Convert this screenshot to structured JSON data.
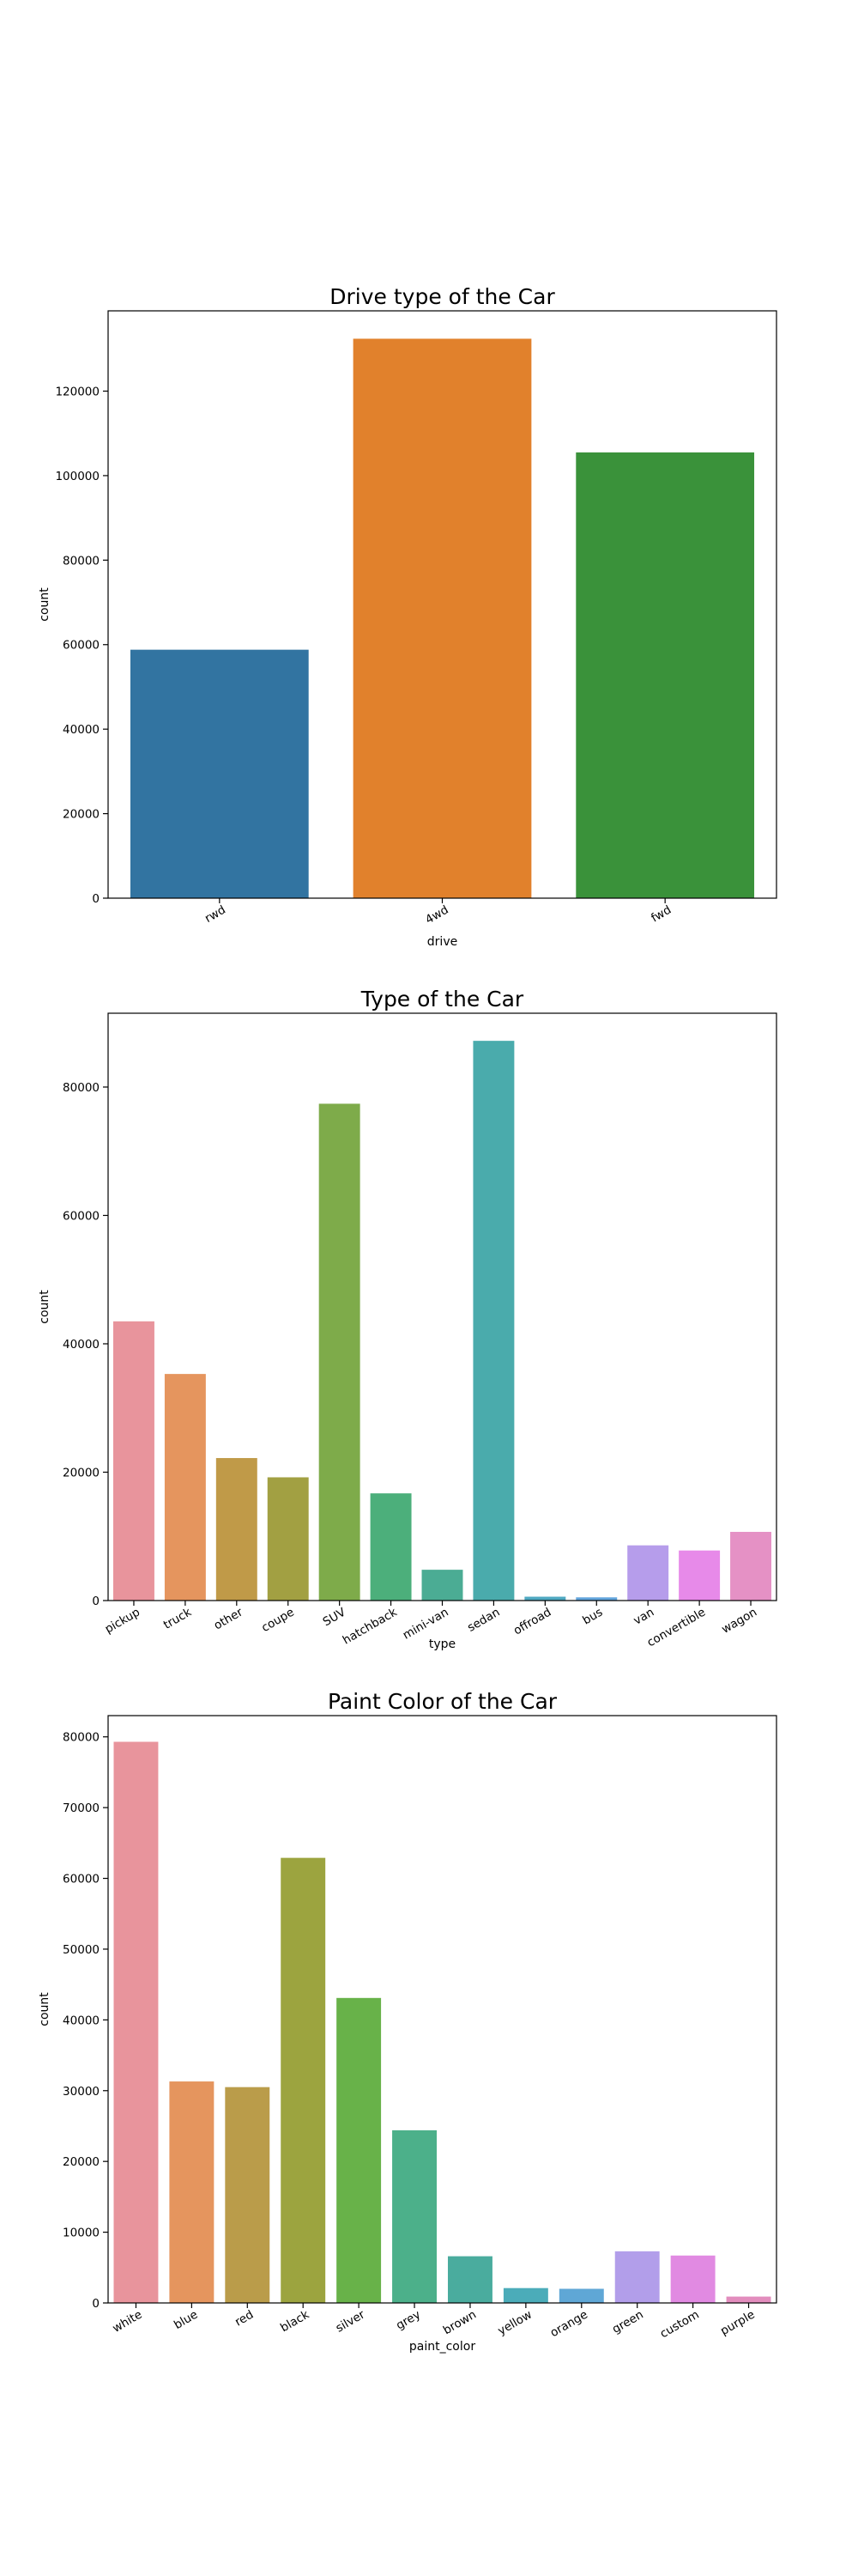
{
  "chart_data": [
    {
      "type": "bar",
      "title": "Drive type of the Car",
      "xlabel": "drive",
      "ylabel": "count",
      "categories": [
        "rwd",
        "4wd",
        "fwd"
      ],
      "values": [
        58800,
        132400,
        105500
      ],
      "ylim": [
        0,
        139000
      ],
      "yticks": [
        0,
        20000,
        40000,
        60000,
        80000,
        100000,
        120000
      ],
      "colors": [
        "#3274a1",
        "#e1812c",
        "#3a923a"
      ],
      "grid": false
    },
    {
      "type": "bar",
      "title": "Type of the Car",
      "xlabel": "type",
      "ylabel": "count",
      "categories": [
        "pickup",
        "truck",
        "other",
        "coupe",
        "SUV",
        "hatchback",
        "mini-van",
        "sedan",
        "offroad",
        "bus",
        "van",
        "convertible",
        "wagon"
      ],
      "values": [
        43500,
        35300,
        22200,
        19200,
        77400,
        16700,
        4800,
        87200,
        600,
        500,
        8600,
        7800,
        10700
      ],
      "ylim": [
        0,
        91500
      ],
      "yticks": [
        0,
        20000,
        40000,
        60000,
        80000
      ],
      "colors": [
        "#e8949c",
        "#e5955e",
        "#c09a48",
        "#a2a042",
        "#7eab4a",
        "#4caf7b",
        "#4bac94",
        "#4aabac",
        "#4fa9c2",
        "#62a5dc",
        "#b69deb",
        "#e78ae9",
        "#e591c5"
      ],
      "grid": false
    },
    {
      "type": "bar",
      "title": "Paint Color of the Car",
      "xlabel": "paint_color",
      "ylabel": "count",
      "categories": [
        "white",
        "blue",
        "red",
        "black",
        "silver",
        "grey",
        "brown",
        "yellow",
        "orange",
        "green",
        "custom",
        "purple"
      ],
      "values": [
        79300,
        31300,
        30500,
        62900,
        43100,
        24400,
        6600,
        2100,
        2000,
        7300,
        6700,
        900
      ],
      "ylim": [
        0,
        83000
      ],
      "yticks": [
        0,
        10000,
        20000,
        30000,
        40000,
        50000,
        60000,
        70000,
        80000
      ],
      "colors": [
        "#e8949c",
        "#e5955e",
        "#ba9c4a",
        "#9ca43f",
        "#68b249",
        "#4cb08a",
        "#4aac9e",
        "#4bacb9",
        "#5fa7d6",
        "#b29eea",
        "#e18ae2",
        "#e28dbd"
      ],
      "grid": false
    }
  ]
}
